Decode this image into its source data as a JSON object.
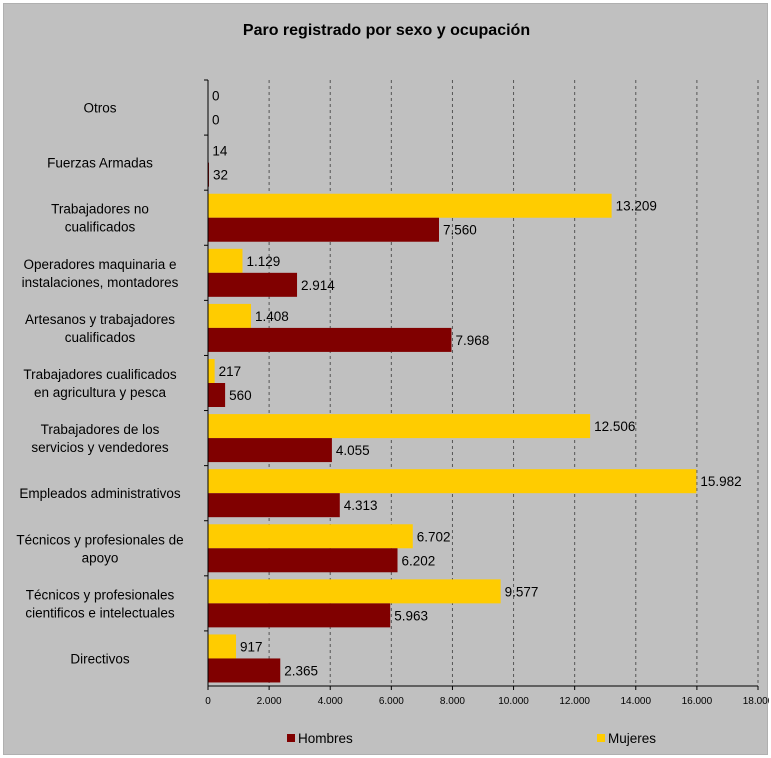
{
  "chart_data": {
    "type": "bar",
    "orientation": "horizontal",
    "title": "Paro registrado por sexo y ocupación",
    "categories": [
      [
        "Directivos"
      ],
      [
        "Técnicos y profesionales",
        "cientificos e intelectuales"
      ],
      [
        "Técnicos y profesionales de",
        "apoyo"
      ],
      [
        "Empleados administrativos"
      ],
      [
        "Trabajadores de los",
        "servicios y vendedores"
      ],
      [
        "Trabajadores cualificados",
        "en agricultura y pesca"
      ],
      [
        "Artesanos y trabajadores",
        "cualificados"
      ],
      [
        "Operadores maquinaria e",
        "instalaciones, montadores"
      ],
      [
        "Trabajadores no",
        "cualificados"
      ],
      [
        "Fuerzas Armadas"
      ],
      [
        "Otros"
      ]
    ],
    "series": [
      {
        "name": "Hombres",
        "color": "#800000",
        "values": [
          2365,
          5963,
          6202,
          4313,
          4055,
          560,
          7968,
          2914,
          7560,
          32,
          0
        ],
        "labels": [
          "2.365",
          "5.963",
          "6.202",
          "4.313",
          "4.055",
          "560",
          "7.968",
          "2.914",
          "7.560",
          "32",
          "0"
        ]
      },
      {
        "name": "Mujeres",
        "color": "#ffcc00",
        "values": [
          917,
          9577,
          6702,
          15982,
          12506,
          217,
          1408,
          1129,
          13209,
          14,
          0
        ],
        "labels": [
          "917",
          "9.577",
          "6.702",
          "15.982",
          "12.506",
          "217",
          "1.408",
          "1.129",
          "13.209",
          "14",
          "0"
        ]
      }
    ],
    "xlim": [
      0,
      18000
    ],
    "xticks": [
      0,
      2000,
      4000,
      6000,
      8000,
      10000,
      12000,
      14000,
      16000,
      18000
    ],
    "xtick_labels": [
      "0",
      "2.000",
      "4.000",
      "6.000",
      "8.000",
      "10.000",
      "12.000",
      "14.000",
      "16.000",
      "18.000"
    ],
    "grid": "vertical dashed",
    "legend": "bottom"
  }
}
